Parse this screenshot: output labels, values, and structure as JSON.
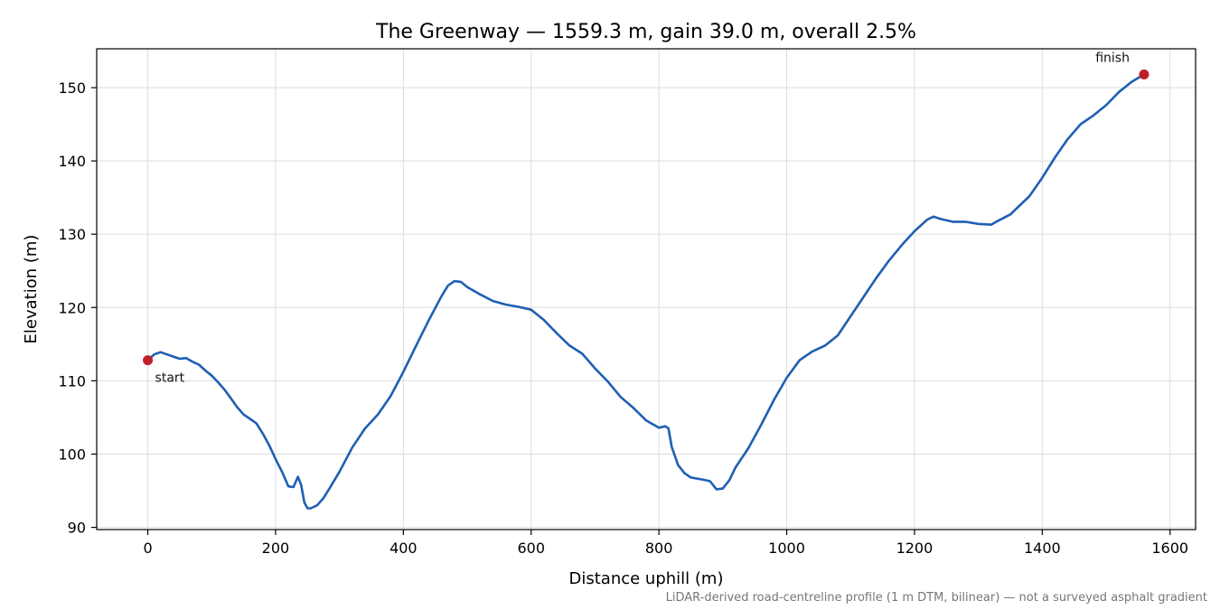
{
  "chart_data": {
    "type": "line",
    "title": "The Greenway — 1559.3 m, gain 39.0 m, overall 2.5%",
    "xlabel": "Distance uphill (m)",
    "ylabel": "Elevation (m)",
    "xlim": [
      -80,
      1640
    ],
    "ylim": [
      89.7,
      155.3
    ],
    "xticks": [
      0,
      200,
      400,
      600,
      800,
      1000,
      1200,
      1400,
      1600
    ],
    "yticks": [
      90,
      100,
      110,
      120,
      130,
      140,
      150
    ],
    "grid": true,
    "line_color": "#1f5fb4",
    "marker_color": "#c0202a",
    "footnote": "LiDAR-derived road-centreline profile (1 m DTM, bilinear) — not a surveyed asphalt gradient",
    "annotations": [
      {
        "name": "start-label",
        "text": "start",
        "x": 0,
        "y": 112.8
      },
      {
        "name": "finish-label",
        "text": "finish",
        "x": 1559.3,
        "y": 151.8
      }
    ],
    "series": [
      {
        "x": [
          0,
          10,
          20,
          30,
          40,
          50,
          60,
          70,
          80,
          90,
          100,
          110,
          120,
          130,
          140,
          150,
          160,
          170,
          180,
          190,
          200,
          210,
          220,
          228,
          235,
          240,
          245,
          250,
          255,
          265,
          275,
          285,
          300,
          320,
          340,
          360,
          380,
          400,
          420,
          440,
          460,
          470,
          480,
          490,
          500,
          520,
          540,
          560,
          580,
          600,
          620,
          640,
          660,
          680,
          700,
          720,
          740,
          760,
          780,
          800,
          810,
          815,
          820,
          830,
          840,
          850,
          870,
          880,
          890,
          900,
          910,
          920,
          940,
          960,
          980,
          1000,
          1020,
          1040,
          1060,
          1080,
          1100,
          1120,
          1140,
          1160,
          1180,
          1200,
          1220,
          1230,
          1240,
          1260,
          1280,
          1300,
          1320,
          1330,
          1350,
          1380,
          1400,
          1420,
          1440,
          1460,
          1480,
          1500,
          1520,
          1540,
          1559.3
        ],
        "y": [
          112.8,
          113.6,
          113.9,
          113.6,
          113.3,
          113.0,
          113.1,
          112.6,
          112.2,
          111.4,
          110.7,
          109.8,
          108.8,
          107.6,
          106.4,
          105.4,
          104.8,
          104.2,
          102.8,
          101.2,
          99.3,
          97.6,
          95.6,
          95.5,
          96.9,
          95.8,
          93.4,
          92.6,
          92.6,
          93.0,
          94.0,
          95.4,
          97.6,
          100.9,
          103.5,
          105.4,
          107.9,
          111.2,
          114.8,
          118.3,
          121.6,
          123.0,
          123.6,
          123.5,
          122.8,
          121.8,
          120.9,
          120.4,
          120.1,
          119.7,
          118.3,
          116.5,
          114.8,
          113.7,
          111.7,
          109.9,
          107.8,
          106.3,
          104.6,
          103.6,
          103.8,
          103.5,
          101.0,
          98.5,
          97.4,
          96.8,
          96.5,
          96.3,
          95.2,
          95.3,
          96.4,
          98.2,
          100.8,
          104.0,
          107.4,
          110.4,
          112.8,
          114.0,
          114.8,
          116.2,
          118.8,
          121.4,
          124.0,
          126.4,
          128.5,
          130.4,
          132.0,
          132.4,
          132.1,
          131.7,
          131.7,
          131.4,
          131.3,
          131.8,
          132.7,
          135.2,
          137.7,
          140.5,
          143.0,
          145.0,
          146.2,
          147.6,
          149.4,
          150.8,
          151.8
        ]
      }
    ]
  }
}
